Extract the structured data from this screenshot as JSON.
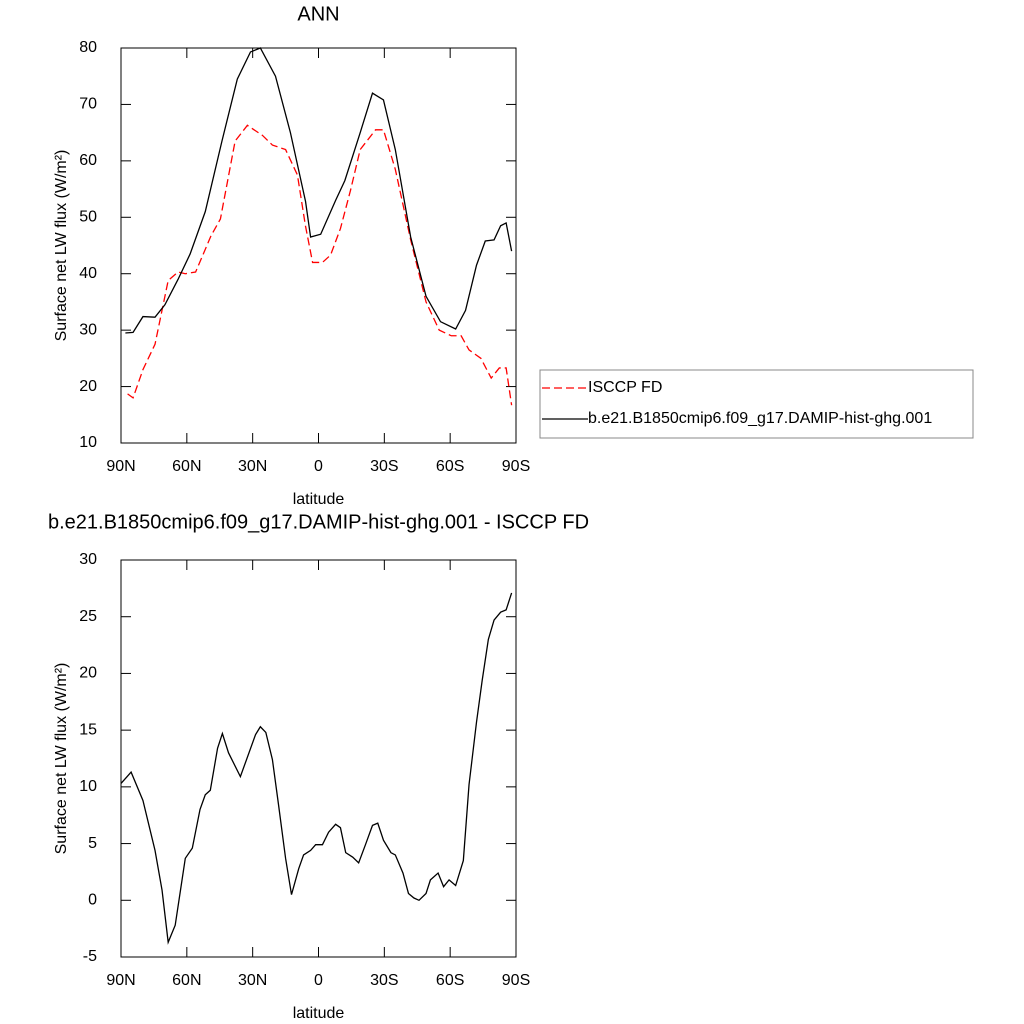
{
  "chart_data": [
    {
      "type": "line",
      "title": "ANN",
      "xlabel": "latitude",
      "ylabel": "Surface net LW flux (W/m²)",
      "xlim": [
        90,
        -90
      ],
      "xticks": [
        {
          "value": 90,
          "label": "90N"
        },
        {
          "value": 60,
          "label": "60N"
        },
        {
          "value": 30,
          "label": "30N"
        },
        0,
        {
          "value": -30,
          "label": "30S"
        },
        {
          "value": -60,
          "label": "60S"
        },
        {
          "value": -90,
          "label": "90S"
        }
      ],
      "ylim": [
        10,
        80
      ],
      "yticks": [
        10,
        20,
        30,
        40,
        50,
        60,
        70,
        80
      ],
      "legend": "right",
      "series": [
        {
          "name": "ISCCP FD",
          "color": "#ff0000",
          "style": "dashed",
          "x": [
            87,
            84.5,
            80,
            74.5,
            68.5,
            64,
            60.7,
            56,
            49,
            44.7,
            38,
            32.4,
            25.5,
            21,
            15,
            9.6,
            6,
            2.7,
            -1.8,
            -5.5,
            -10,
            -14.6,
            -19,
            -26,
            -29.6,
            -35,
            -42,
            -49,
            -55,
            -60.5,
            -65,
            -68.6,
            -74,
            -78.7,
            -82.4,
            -85.5,
            -88
          ],
          "values": [
            18.7,
            18,
            23,
            27.5,
            38.8,
            40.3,
            40,
            40.3,
            46.7,
            49.7,
            63.5,
            66.3,
            64.5,
            62.8,
            62,
            57.5,
            48.6,
            42,
            42,
            43.3,
            48,
            54.8,
            62,
            65.5,
            65.5,
            58.5,
            46,
            35,
            30,
            29,
            29,
            26.5,
            25,
            21.5,
            23.3,
            23.3,
            16.7
          ]
        },
        {
          "name": "b.e21.B1850cmip6.f09_g17.DAMIP-hist-ghg.001",
          "color": "#000000",
          "style": "solid",
          "x": [
            88,
            84.5,
            80,
            74.5,
            70,
            64,
            58.5,
            51.6,
            44,
            37,
            31,
            26.5,
            19.6,
            12.8,
            5.9,
            3.6,
            -1,
            -7.8,
            -12,
            -19,
            -24.6,
            -29.6,
            -35,
            -42,
            -49,
            -55.6,
            -62.5,
            -67,
            -72,
            -76,
            -80,
            -83,
            -85.5,
            -88
          ],
          "values": [
            29.5,
            29.6,
            32.4,
            32.3,
            34.5,
            39,
            43.5,
            51,
            63.5,
            74.5,
            79.3,
            80,
            75,
            65,
            52.8,
            46.5,
            47,
            53,
            56.5,
            65,
            72,
            70.8,
            62,
            46.5,
            36,
            31.5,
            30.2,
            33.5,
            41.5,
            45.8,
            46,
            48.5,
            49,
            44
          ]
        }
      ]
    },
    {
      "type": "line",
      "title": "b.e21.B1850cmip6.f09_g17.DAMIP-hist-ghg.001 - ISCCP FD",
      "xlabel": "latitude",
      "ylabel": "Surface net LW flux (W/m²)",
      "xlim": [
        90,
        -90
      ],
      "xticks": [
        {
          "value": 90,
          "label": "90N"
        },
        {
          "value": 60,
          "label": "60N"
        },
        {
          "value": 30,
          "label": "30N"
        },
        0,
        {
          "value": -30,
          "label": "30S"
        },
        {
          "value": -60,
          "label": "60S"
        },
        {
          "value": -90,
          "label": "90S"
        }
      ],
      "ylim": [
        -5,
        30
      ],
      "yticks": [
        -5,
        0,
        5,
        10,
        15,
        20,
        25,
        30
      ],
      "color": "#000000",
      "x": [
        90,
        85.4,
        80,
        74.5,
        71.3,
        68.5,
        65.3,
        60.7,
        57.5,
        54,
        51.6,
        49.3,
        46,
        43.8,
        41,
        35.6,
        28.7,
        26.5,
        24,
        21,
        18.2,
        15,
        12.3,
        9,
        6.8,
        3.6,
        1.3,
        -1.8,
        -4.6,
        -7.8,
        -10,
        -12.4,
        -15.6,
        -18.3,
        -21.4,
        -24.6,
        -27,
        -29.6,
        -33,
        -35,
        -38.5,
        -41,
        -43.5,
        -45.8,
        -49,
        -51,
        -54.5,
        -57,
        -59.5,
        -62.5,
        -66,
        -68.6,
        -72,
        -74.6,
        -77.4,
        -80,
        -83,
        -85.5,
        -88
      ],
      "values": [
        10.3,
        11.3,
        8.8,
        4.4,
        0.9,
        -3.7,
        -2.2,
        3.7,
        4.6,
        8,
        9.3,
        9.7,
        13.4,
        14.7,
        13,
        10.9,
        14.6,
        15.3,
        14.8,
        12.4,
        8.4,
        3.7,
        0.5,
        2.8,
        4,
        4.4,
        4.9,
        4.9,
        6,
        6.7,
        6.4,
        4.2,
        3.8,
        3.3,
        4.9,
        6.6,
        6.8,
        5.3,
        4.2,
        4,
        2.4,
        0.6,
        0.2,
        0,
        0.6,
        1.8,
        2.4,
        1.2,
        1.8,
        1.3,
        3.5,
        10.2,
        15.7,
        19.4,
        23,
        24.7,
        25.4,
        25.6,
        27.1
      ]
    }
  ]
}
